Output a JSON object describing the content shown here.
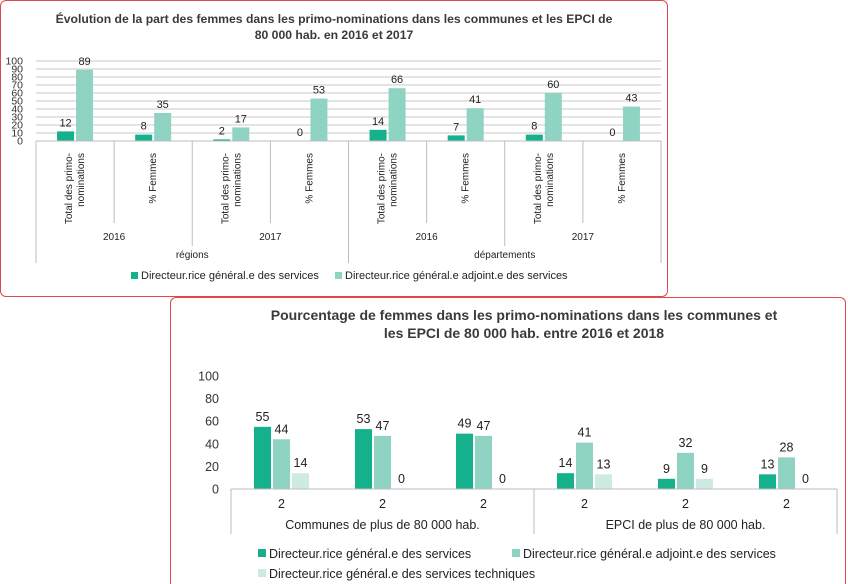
{
  "colors": {
    "dgs": "#15b08c",
    "dgas": "#8fd3c2",
    "dst": "#cdebe2",
    "frame": "#e0474c"
  },
  "chart_data": [
    {
      "type": "bar",
      "title_line1": "Évolution de la part des femmes dans les primo-nominations dans les communes et les EPCI de",
      "title_line2": "80 000 hab. en 2016 et 2017",
      "ylim": [
        0,
        100
      ],
      "yticks": [
        "0",
        "10",
        "20",
        "30",
        "40",
        "50",
        "60",
        "70",
        "80",
        "90",
        "100"
      ],
      "cat_line1": [
        "Total des primo-",
        "% Femmes",
        "Total des primo-",
        "% Femmes",
        "Total des primo-",
        "% Femmes",
        "Total des primo-",
        "% Femmes"
      ],
      "cat_line2": [
        "nominations",
        "",
        "nominations",
        "",
        "nominations",
        "",
        "nominations",
        ""
      ],
      "years": [
        "2016",
        "2017",
        "2016",
        "2017"
      ],
      "groups": [
        "régions",
        "départements"
      ],
      "series": [
        {
          "name": "Directeur.rice général.e des services",
          "values": [
            12,
            8,
            2,
            0,
            14,
            7,
            8,
            0
          ]
        },
        {
          "name": "Directeur.rice général.e adjoint.e des services",
          "values": [
            89,
            35,
            17,
            53,
            66,
            41,
            60,
            43
          ]
        }
      ]
    },
    {
      "type": "bar",
      "title_line1": "Pourcentage de femmes dans les primo-nominations dans les communes et",
      "title_line2": "les EPCI de 80 000 hab. entre 2016 et 2018",
      "ylim": [
        0,
        100
      ],
      "yticks": [
        "0",
        "20",
        "40",
        "60",
        "80",
        "100"
      ],
      "categories": [
        "2",
        "2",
        "2",
        "2",
        "2",
        "2"
      ],
      "groups": [
        "Communes de plus de 80 000 hab.",
        "EPCI de plus de 80 000 hab."
      ],
      "series": [
        {
          "name": "Directeur.rice général.e des services",
          "values": [
            55,
            53,
            49,
            14,
            9,
            13
          ]
        },
        {
          "name": "Directeur.rice général.e adjoint.e des services",
          "values": [
            44,
            47,
            47,
            41,
            32,
            28
          ]
        },
        {
          "name": "Directeur.rice général.e des services techniques",
          "values": [
            14,
            0,
            0,
            13,
            9,
            0
          ]
        }
      ]
    }
  ]
}
